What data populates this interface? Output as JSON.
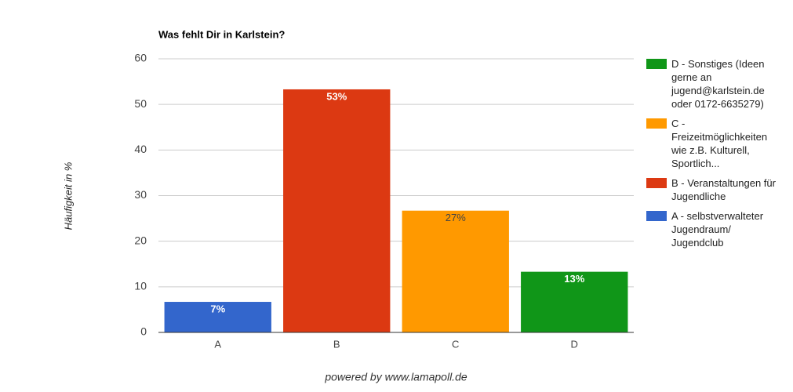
{
  "chart_data": {
    "type": "bar",
    "title": "Was fehlt Dir in Karlstein?",
    "y_label": "Häufigkeit in %",
    "categories": [
      "A",
      "B",
      "C",
      "D"
    ],
    "values": [
      6.7,
      53.3,
      26.7,
      13.3
    ],
    "value_labels": [
      "7%",
      "53%",
      "27%",
      "13%"
    ],
    "colors": [
      "#3366cc",
      "#dc3912",
      "#ff9900",
      "#109618"
    ],
    "legend_labels": [
      "A - selbstverwalteter Jugendraum/ Jugendclub",
      "B - Veranstaltungen für Jugendliche",
      "C - Freizeitmöglichkeiten wie z.B. Kulturell, Sportlich...",
      "D - Sonstiges (Ideen gerne an jugend@karlstein.de oder 0172-6635279)"
    ],
    "ylim": [
      0,
      60
    ],
    "yticks": [
      0,
      10,
      20,
      30,
      40,
      50,
      60
    ],
    "grid": true,
    "footer": "powered by www.lamapoll.de"
  }
}
